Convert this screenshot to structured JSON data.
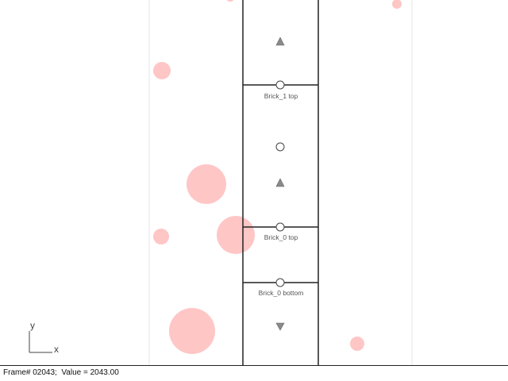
{
  "status": {
    "text": "Frame# 02043;  Value = 2043.00"
  },
  "axes": {
    "x_label": "x",
    "y_label": "y"
  },
  "brick_labels": {
    "brick1_top": "Brick_1 top",
    "brick0_top": "Brick_0 top",
    "brick0_bottom": "Brick_0 bottom"
  },
  "colors": {
    "particle": "#ffb3b3",
    "channel_border": "#222222",
    "guide_line": "#e6e6e6",
    "marker_fill": "#8a8a8a"
  },
  "icons": {
    "up_marker": "up-triangle-marker",
    "down_marker": "down-triangle-marker",
    "node_marker": "hollow-circle-marker"
  }
}
